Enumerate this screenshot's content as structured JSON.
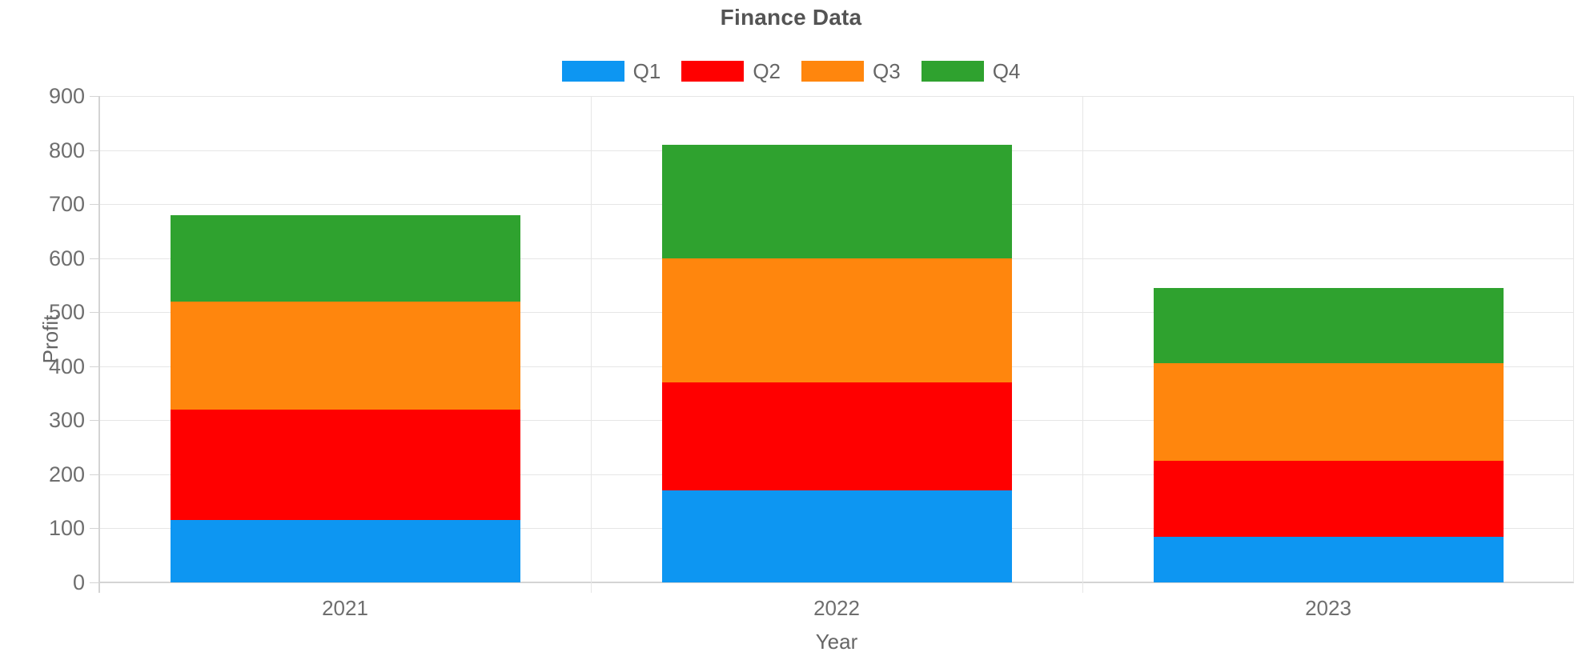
{
  "chart_data": {
    "type": "bar",
    "stacked": true,
    "title": "Finance Data",
    "categories": [
      "2021",
      "2022",
      "2023"
    ],
    "series": [
      {
        "name": "Q1",
        "color": "#0d96f2",
        "values": [
          115,
          170,
          85
        ]
      },
      {
        "name": "Q2",
        "color": "#ff0000",
        "values": [
          205,
          200,
          140
        ]
      },
      {
        "name": "Q3",
        "color": "#ff860d",
        "values": [
          200,
          230,
          180
        ]
      },
      {
        "name": "Q4",
        "color": "#2fa22f",
        "values": [
          160,
          210,
          140
        ]
      }
    ],
    "totals": [
      680,
      810,
      545
    ],
    "xlabel": "Year",
    "ylabel": "Profit",
    "ylim": [
      0,
      900
    ],
    "yticks": [
      "0",
      "100",
      "200",
      "300",
      "400",
      "500",
      "600",
      "700",
      "800",
      "900"
    ],
    "grid": true,
    "legend_position": "top",
    "colors": {
      "gridline": "#e6e6e6",
      "axis_line": "#d4d4d4",
      "tick_text": "#6e6e6e",
      "title_text": "#545454"
    }
  }
}
